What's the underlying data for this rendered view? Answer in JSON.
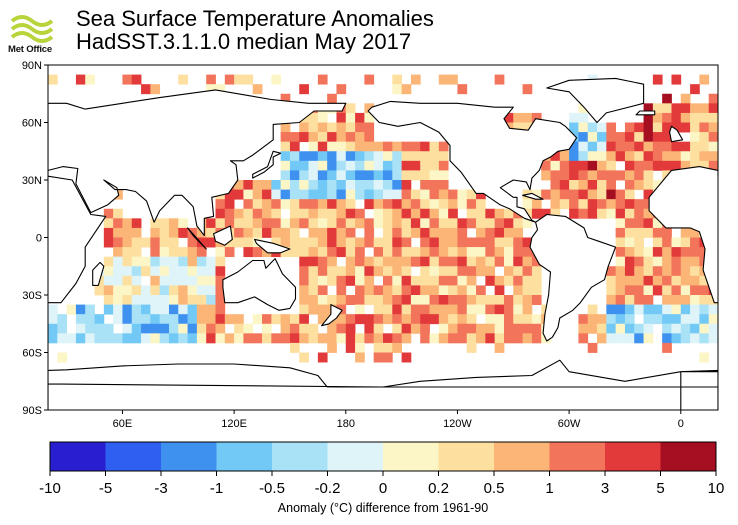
{
  "header": {
    "logo_text": "Met Office",
    "title_line1": "Sea Surface Temperature Anomalies",
    "title_line2": "HadSST.3.1.1.0 median May 2017"
  },
  "map": {
    "lat_labels": [
      "90N",
      "60N",
      "30N",
      "0",
      "30S",
      "60S",
      "90S"
    ],
    "lon_labels": [
      "60E",
      "120E",
      "180",
      "120W",
      "60W",
      "0"
    ],
    "land_color": "#ffffff",
    "coast_color": "#000000"
  },
  "colorbar": {
    "labels": [
      "-10",
      "-5",
      "-3",
      "-1",
      "-0.5",
      "-0.2",
      "0",
      "0.2",
      "0.5",
      "1",
      "3",
      "5",
      "10"
    ],
    "colors": [
      "#2a1fd0",
      "#2f5ff0",
      "#3f91f0",
      "#73c9f5",
      "#a9e2f6",
      "#def4f9",
      "#fcf6c6",
      "#fde0a0",
      "#fbb577",
      "#f2745a",
      "#e23a3a",
      "#a60f22"
    ],
    "caption": "Anomaly (°C) difference from 1961-90"
  }
}
